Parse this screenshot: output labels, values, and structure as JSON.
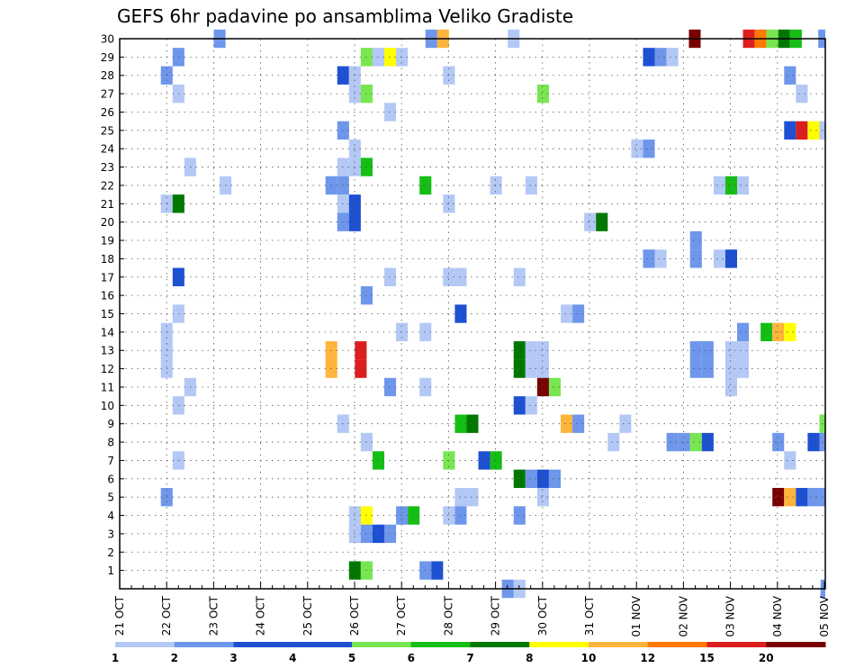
{
  "chart_data": {
    "type": "heatmap",
    "title": "GEFS 6hr padavine po ansamblima Veliko Gradiste",
    "y_categories": [
      "1",
      "2",
      "3",
      "4",
      "5",
      "6",
      "7",
      "8",
      "9",
      "10",
      "11",
      "12",
      "13",
      "14",
      "15",
      "16",
      "17",
      "18",
      "19",
      "20",
      "21",
      "22",
      "23",
      "24",
      "25",
      "26",
      "27",
      "28",
      "29",
      "30"
    ],
    "x_tick_labels": [
      "21 OCT",
      "22 OCT",
      "23 OCT",
      "24 OCT",
      "25 OCT",
      "26 OCT",
      "27 OCT",
      "28 OCT",
      "29 OCT",
      "30 OCT",
      "31 OCT",
      "01 NOV",
      "02 NOV",
      "03 NOV",
      "04 NOV",
      "05 NOV"
    ],
    "x_unit": "6-hour step",
    "xlim": [
      0,
      60
    ],
    "grid": true,
    "colorbar": {
      "labels": [
        "1",
        "2",
        "3",
        "4",
        "5",
        "6",
        "7",
        "8",
        "10",
        "12",
        "15",
        "20"
      ],
      "colors": [
        "#b4c8f5",
        "#6e96eb",
        "#1e50d2",
        "#1e50d2",
        "#78e650",
        "#14be14",
        "#007800",
        "#ffff00",
        "#ffb43c",
        "#ff7800",
        "#dc1e1e",
        "#780000"
      ]
    },
    "cells": [
      [
        30,
        4,
        2
      ],
      [
        30,
        13,
        2
      ],
      [
        30,
        13.5,
        10
      ],
      [
        30,
        16.5,
        1
      ],
      [
        30,
        24.2,
        20
      ],
      [
        30,
        26.5,
        15
      ],
      [
        30,
        27,
        12
      ],
      [
        30,
        27.5,
        5
      ],
      [
        30,
        28,
        7
      ],
      [
        30,
        28.5,
        6
      ],
      [
        30,
        29.7,
        2
      ],
      [
        29,
        2.25,
        2
      ],
      [
        29,
        10.25,
        5
      ],
      [
        29,
        10.75,
        1
      ],
      [
        29,
        11.25,
        8
      ],
      [
        29,
        11.75,
        1
      ],
      [
        29,
        22.25,
        3
      ],
      [
        29,
        22.75,
        2
      ],
      [
        29,
        23.25,
        1
      ],
      [
        28,
        1.75,
        2
      ],
      [
        28,
        9.25,
        3
      ],
      [
        28,
        9.75,
        1
      ],
      [
        28,
        13.75,
        1
      ],
      [
        28,
        28.25,
        2
      ],
      [
        27,
        2.25,
        1
      ],
      [
        27,
        9.75,
        1
      ],
      [
        27,
        10.25,
        5
      ],
      [
        27,
        17.75,
        5
      ],
      [
        27,
        28.75,
        1
      ],
      [
        26,
        11.25,
        1
      ],
      [
        25,
        9.25,
        2
      ],
      [
        25,
        28.25,
        3
      ],
      [
        25,
        28.75,
        15
      ],
      [
        25,
        29.25,
        8
      ],
      [
        25,
        29.75,
        1
      ],
      [
        24,
        9.75,
        1
      ],
      [
        24,
        21.75,
        1
      ],
      [
        24,
        22.25,
        2
      ],
      [
        23,
        2.75,
        1
      ],
      [
        23,
        9.25,
        1
      ],
      [
        23,
        9.75,
        1
      ],
      [
        23,
        10.25,
        6
      ],
      [
        22,
        4.25,
        1
      ],
      [
        22,
        8.75,
        2
      ],
      [
        22,
        9.25,
        2
      ],
      [
        22,
        12.75,
        6
      ],
      [
        22,
        15.75,
        1
      ],
      [
        22,
        17.25,
        1
      ],
      [
        22,
        25.25,
        1
      ],
      [
        22,
        25.75,
        6
      ],
      [
        22,
        26.25,
        1
      ],
      [
        21,
        1.75,
        1
      ],
      [
        21,
        2.25,
        7
      ],
      [
        21,
        9.25,
        1
      ],
      [
        21,
        9.75,
        3
      ],
      [
        21,
        13.75,
        1
      ],
      [
        20,
        9.25,
        2
      ],
      [
        20,
        9.75,
        3
      ],
      [
        20,
        19.75,
        1
      ],
      [
        20,
        20.25,
        7
      ],
      [
        18,
        24.25,
        2
      ],
      [
        19,
        24.25,
        2
      ],
      [
        18,
        22.25,
        2
      ],
      [
        18,
        22.75,
        1
      ],
      [
        18,
        25.25,
        1
      ],
      [
        18,
        25.75,
        3
      ],
      [
        17,
        2.25,
        3
      ],
      [
        17,
        11.25,
        1
      ],
      [
        17,
        13.75,
        1
      ],
      [
        17,
        14.25,
        1
      ],
      [
        17,
        16.75,
        1
      ],
      [
        16,
        10.25,
        2
      ],
      [
        15,
        2.25,
        1
      ],
      [
        15,
        14.25,
        3
      ],
      [
        15,
        18.75,
        1
      ],
      [
        15,
        19.25,
        2
      ],
      [
        14,
        1.75,
        1
      ],
      [
        14,
        11.75,
        1
      ],
      [
        14,
        12.75,
        1
      ],
      [
        14,
        26.25,
        2
      ],
      [
        14,
        27.25,
        6
      ],
      [
        14,
        27.75,
        10
      ],
      [
        14,
        28.25,
        8
      ],
      [
        13,
        1.75,
        1
      ],
      [
        13,
        8.75,
        10
      ],
      [
        13,
        10.0,
        15
      ],
      [
        13,
        16.75,
        7
      ],
      [
        13,
        17.25,
        1
      ],
      [
        13,
        17.75,
        1
      ],
      [
        13,
        24.25,
        2
      ],
      [
        13,
        24.75,
        2
      ],
      [
        13,
        25.75,
        1
      ],
      [
        13,
        26.25,
        1
      ],
      [
        12,
        1.75,
        1
      ],
      [
        12,
        8.75,
        10
      ],
      [
        12,
        10.0,
        15
      ],
      [
        12,
        16.75,
        7
      ],
      [
        12,
        17.25,
        1
      ],
      [
        12,
        17.75,
        1
      ],
      [
        12,
        24.25,
        2
      ],
      [
        12,
        24.75,
        2
      ],
      [
        12,
        25.75,
        1
      ],
      [
        12,
        26.25,
        1
      ],
      [
        11,
        2.75,
        1
      ],
      [
        11,
        11.25,
        2
      ],
      [
        11,
        12.75,
        1
      ],
      [
        11,
        17.75,
        20
      ],
      [
        11,
        18.25,
        5
      ],
      [
        11,
        25.75,
        1
      ],
      [
        10,
        2.25,
        1
      ],
      [
        10,
        16.75,
        3
      ],
      [
        10,
        17.25,
        1
      ],
      [
        9,
        9.25,
        1
      ],
      [
        9,
        14.25,
        6
      ],
      [
        9,
        14.75,
        7
      ],
      [
        9,
        18.75,
        10
      ],
      [
        9,
        19.25,
        2
      ],
      [
        9,
        21.25,
        1
      ],
      [
        9,
        29.75,
        5
      ],
      [
        8,
        10.25,
        1
      ],
      [
        8,
        20.75,
        1
      ],
      [
        8,
        23.25,
        2
      ],
      [
        8,
        23.75,
        2
      ],
      [
        8,
        24.25,
        5
      ],
      [
        8,
        24.75,
        3
      ],
      [
        8,
        27.75,
        2
      ],
      [
        8,
        29.25,
        3
      ],
      [
        8,
        29.75,
        2
      ],
      [
        7,
        2.25,
        1
      ],
      [
        7,
        10.75,
        6
      ],
      [
        7,
        13.75,
        5
      ],
      [
        7,
        15.25,
        3
      ],
      [
        7,
        15.75,
        6
      ],
      [
        7,
        28.25,
        1
      ],
      [
        6,
        16.75,
        7
      ],
      [
        6,
        17.25,
        2
      ],
      [
        6,
        17.75,
        3
      ],
      [
        6,
        18.25,
        2
      ],
      [
        5,
        1.75,
        2
      ],
      [
        5,
        14.25,
        1
      ],
      [
        5,
        14.75,
        1
      ],
      [
        5,
        17.75,
        1
      ],
      [
        5,
        27.75,
        20
      ],
      [
        5,
        28.25,
        10
      ],
      [
        5,
        28.75,
        3
      ],
      [
        5,
        29.25,
        2
      ],
      [
        5,
        29.75,
        2
      ],
      [
        4,
        9.75,
        1
      ],
      [
        4,
        10.25,
        8
      ],
      [
        4,
        11.75,
        2
      ],
      [
        4,
        12.25,
        6
      ],
      [
        4,
        13.75,
        1
      ],
      [
        4,
        14.25,
        2
      ],
      [
        4,
        16.75,
        2
      ],
      [
        3,
        9.75,
        1
      ],
      [
        3,
        10.25,
        2
      ],
      [
        3,
        10.75,
        3
      ],
      [
        3,
        11.25,
        2
      ],
      [
        1,
        9.75,
        7
      ],
      [
        1,
        10.25,
        5
      ],
      [
        1,
        12.75,
        2
      ],
      [
        1,
        13.25,
        3
      ],
      [
        0,
        16.25,
        2
      ],
      [
        0,
        16.75,
        1
      ],
      [
        0,
        29.8,
        2
      ]
    ]
  }
}
